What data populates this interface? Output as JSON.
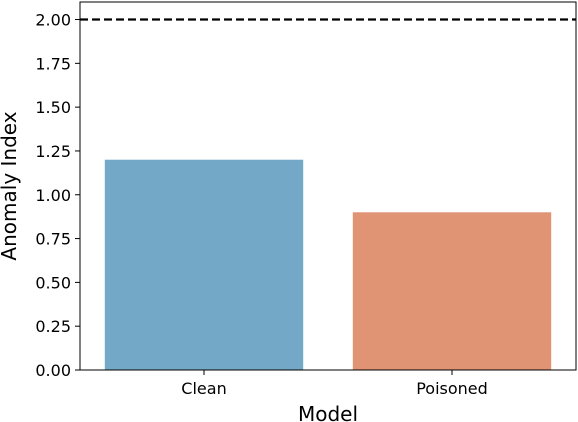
{
  "chart_data": {
    "type": "bar",
    "title": "",
    "xlabel": "Model",
    "ylabel": "Anomaly Index",
    "categories": [
      "Clean",
      "Poisoned"
    ],
    "values": [
      1.2,
      0.9
    ],
    "bar_colors": [
      "#74a8c7",
      "#e09474"
    ],
    "ylim": [
      0,
      2.1
    ],
    "yticks": [
      0.0,
      0.25,
      0.5,
      0.75,
      1.0,
      1.25,
      1.5,
      1.75,
      2.0
    ],
    "ytick_labels": [
      "0.00",
      "0.25",
      "0.50",
      "0.75",
      "1.00",
      "1.25",
      "1.50",
      "1.75",
      "2.00"
    ],
    "reference_line": {
      "y": 2.0,
      "style": "dashed",
      "color": "#000000"
    },
    "grid": false,
    "legend": "none"
  }
}
